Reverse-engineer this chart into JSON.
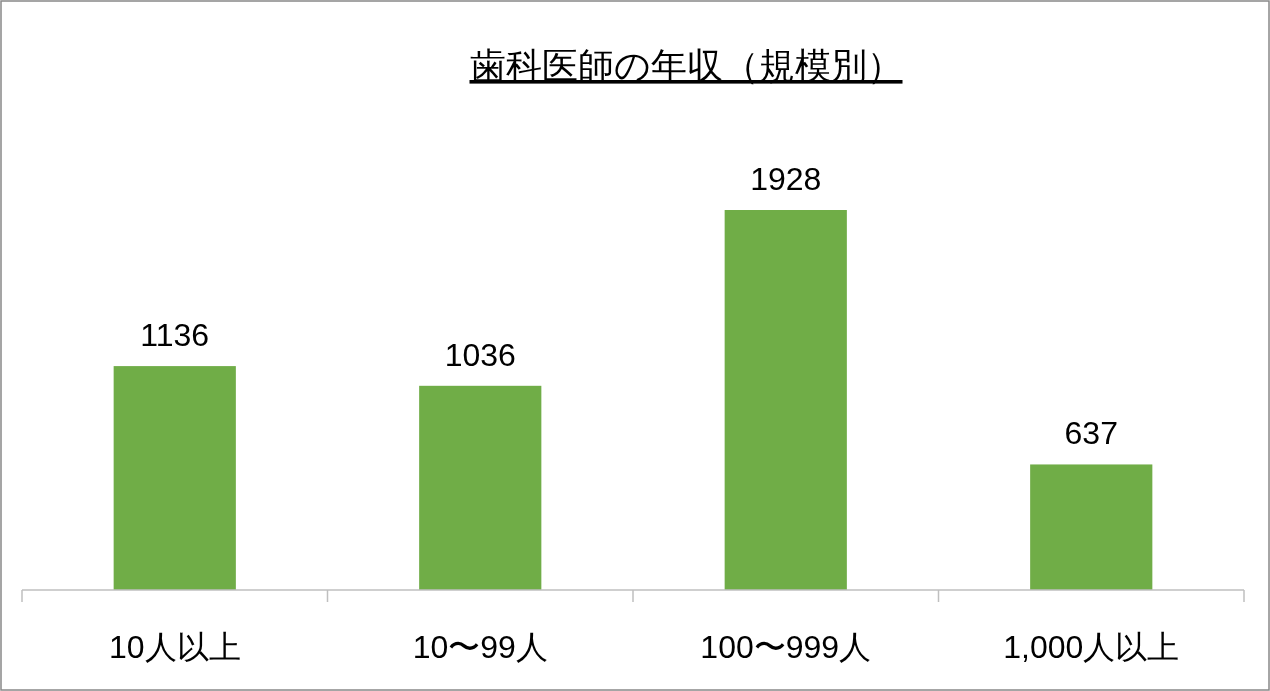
{
  "chart_data": {
    "type": "bar",
    "title": "歯科医師の年収（規模別）",
    "categories": [
      "10人以上",
      "10〜99人",
      "100〜999人",
      "1,000人以上"
    ],
    "values": [
      1136,
      1036,
      1928,
      637
    ],
    "color": "#70ad47",
    "data_labels": true
  }
}
